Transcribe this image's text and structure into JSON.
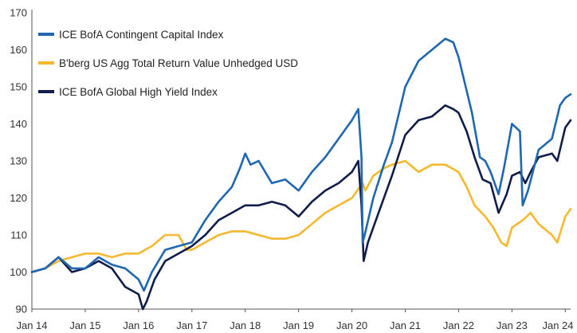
{
  "chart_data": {
    "type": "line",
    "title": "",
    "xlabel": "",
    "ylabel": "",
    "ylim": [
      90,
      170
    ],
    "yticks": [
      90,
      100,
      110,
      120,
      130,
      140,
      150,
      160,
      170
    ],
    "xlim": [
      2014.0,
      2024.1
    ],
    "xticks": [
      {
        "value": 2014,
        "label": "Jan 14"
      },
      {
        "value": 2015,
        "label": "Jan 15"
      },
      {
        "value": 2016,
        "label": "Jan 16"
      },
      {
        "value": 2017,
        "label": "Jan 17"
      },
      {
        "value": 2018,
        "label": "Jan 18"
      },
      {
        "value": 2019,
        "label": "Jan 19"
      },
      {
        "value": 2020,
        "label": "Jan 20"
      },
      {
        "value": 2021,
        "label": "Jan 21"
      },
      {
        "value": 2022,
        "label": "Jan 22"
      },
      {
        "value": 2023,
        "label": "Jan 23"
      },
      {
        "value": 2024,
        "label": "Jan 24"
      }
    ],
    "grid": false,
    "legend_position": "top-left",
    "series": [
      {
        "name": "ICE BofA Contingent Capital Index",
        "color": "#1f67b1",
        "points": [
          [
            2014.0,
            100
          ],
          [
            2014.25,
            101
          ],
          [
            2014.5,
            104
          ],
          [
            2014.75,
            101
          ],
          [
            2015.0,
            101
          ],
          [
            2015.25,
            104
          ],
          [
            2015.5,
            102
          ],
          [
            2015.75,
            101
          ],
          [
            2016.0,
            98
          ],
          [
            2016.1,
            95
          ],
          [
            2016.25,
            100
          ],
          [
            2016.5,
            106
          ],
          [
            2016.75,
            107
          ],
          [
            2017.0,
            108
          ],
          [
            2017.25,
            114
          ],
          [
            2017.5,
            119
          ],
          [
            2017.75,
            123
          ],
          [
            2017.9,
            128
          ],
          [
            2018.0,
            132
          ],
          [
            2018.1,
            129
          ],
          [
            2018.25,
            130
          ],
          [
            2018.5,
            124
          ],
          [
            2018.75,
            125
          ],
          [
            2019.0,
            122
          ],
          [
            2019.25,
            127
          ],
          [
            2019.5,
            131
          ],
          [
            2019.75,
            136
          ],
          [
            2020.0,
            141
          ],
          [
            2020.12,
            144
          ],
          [
            2020.18,
            131
          ],
          [
            2020.2,
            108
          ],
          [
            2020.24,
            110
          ],
          [
            2020.4,
            120
          ],
          [
            2020.6,
            129
          ],
          [
            2020.75,
            135
          ],
          [
            2021.0,
            150
          ],
          [
            2021.25,
            157
          ],
          [
            2021.5,
            160
          ],
          [
            2021.75,
            163
          ],
          [
            2021.9,
            162
          ],
          [
            2022.0,
            158
          ],
          [
            2022.1,
            152
          ],
          [
            2022.25,
            143
          ],
          [
            2022.4,
            131
          ],
          [
            2022.5,
            130
          ],
          [
            2022.6,
            127
          ],
          [
            2022.75,
            121
          ],
          [
            2022.85,
            128
          ],
          [
            2023.0,
            140
          ],
          [
            2023.15,
            138
          ],
          [
            2023.2,
            118
          ],
          [
            2023.3,
            122
          ],
          [
            2023.5,
            133
          ],
          [
            2023.75,
            136
          ],
          [
            2023.9,
            145
          ],
          [
            2024.0,
            147
          ],
          [
            2024.1,
            148
          ]
        ]
      },
      {
        "name": "B'berg US Agg Total Return Value Unhedged USD",
        "color": "#f5b82e",
        "points": [
          [
            2014.0,
            100
          ],
          [
            2014.25,
            101
          ],
          [
            2014.5,
            103
          ],
          [
            2014.75,
            104
          ],
          [
            2015.0,
            105
          ],
          [
            2015.25,
            105
          ],
          [
            2015.5,
            104
          ],
          [
            2015.75,
            105
          ],
          [
            2016.0,
            105
          ],
          [
            2016.25,
            107
          ],
          [
            2016.5,
            110
          ],
          [
            2016.75,
            110
          ],
          [
            2016.9,
            106
          ],
          [
            2017.0,
            106
          ],
          [
            2017.25,
            108
          ],
          [
            2017.5,
            110
          ],
          [
            2017.75,
            111
          ],
          [
            2018.0,
            111
          ],
          [
            2018.25,
            110
          ],
          [
            2018.5,
            109
          ],
          [
            2018.75,
            109
          ],
          [
            2019.0,
            110
          ],
          [
            2019.25,
            113
          ],
          [
            2019.5,
            116
          ],
          [
            2019.75,
            118
          ],
          [
            2020.0,
            120
          ],
          [
            2020.2,
            124
          ],
          [
            2020.25,
            122
          ],
          [
            2020.4,
            126
          ],
          [
            2020.6,
            128
          ],
          [
            2020.75,
            129
          ],
          [
            2021.0,
            130
          ],
          [
            2021.25,
            127
          ],
          [
            2021.5,
            129
          ],
          [
            2021.75,
            129
          ],
          [
            2022.0,
            127
          ],
          [
            2022.15,
            123
          ],
          [
            2022.3,
            118
          ],
          [
            2022.5,
            115
          ],
          [
            2022.65,
            112
          ],
          [
            2022.8,
            108
          ],
          [
            2022.9,
            107
          ],
          [
            2023.0,
            112
          ],
          [
            2023.2,
            114
          ],
          [
            2023.35,
            116
          ],
          [
            2023.5,
            113
          ],
          [
            2023.75,
            110
          ],
          [
            2023.85,
            108
          ],
          [
            2024.0,
            115
          ],
          [
            2024.1,
            117
          ]
        ]
      },
      {
        "name": "ICE BofA Global High Yield Index",
        "color": "#101d4a",
        "points": [
          [
            2014.0,
            100
          ],
          [
            2014.25,
            101
          ],
          [
            2014.5,
            104
          ],
          [
            2014.75,
            100
          ],
          [
            2015.0,
            101
          ],
          [
            2015.25,
            103
          ],
          [
            2015.5,
            101
          ],
          [
            2015.75,
            96
          ],
          [
            2016.0,
            94
          ],
          [
            2016.08,
            90
          ],
          [
            2016.15,
            92
          ],
          [
            2016.3,
            98
          ],
          [
            2016.5,
            103
          ],
          [
            2016.75,
            105
          ],
          [
            2017.0,
            107
          ],
          [
            2017.25,
            110
          ],
          [
            2017.5,
            114
          ],
          [
            2017.75,
            116
          ],
          [
            2018.0,
            118
          ],
          [
            2018.25,
            118
          ],
          [
            2018.5,
            119
          ],
          [
            2018.75,
            118
          ],
          [
            2019.0,
            115
          ],
          [
            2019.25,
            119
          ],
          [
            2019.5,
            122
          ],
          [
            2019.75,
            124
          ],
          [
            2020.0,
            127
          ],
          [
            2020.12,
            130
          ],
          [
            2020.18,
            118
          ],
          [
            2020.22,
            103
          ],
          [
            2020.3,
            108
          ],
          [
            2020.5,
            116
          ],
          [
            2020.75,
            126
          ],
          [
            2021.0,
            137
          ],
          [
            2021.25,
            141
          ],
          [
            2021.5,
            142
          ],
          [
            2021.75,
            145
          ],
          [
            2021.9,
            144
          ],
          [
            2022.0,
            143
          ],
          [
            2022.15,
            138
          ],
          [
            2022.3,
            131
          ],
          [
            2022.45,
            125
          ],
          [
            2022.6,
            124
          ],
          [
            2022.75,
            116
          ],
          [
            2022.9,
            121
          ],
          [
            2023.0,
            126
          ],
          [
            2023.15,
            127
          ],
          [
            2023.25,
            124
          ],
          [
            2023.35,
            127
          ],
          [
            2023.5,
            131
          ],
          [
            2023.75,
            132
          ],
          [
            2023.85,
            130
          ],
          [
            2024.0,
            139
          ],
          [
            2024.1,
            141
          ]
        ]
      }
    ]
  }
}
